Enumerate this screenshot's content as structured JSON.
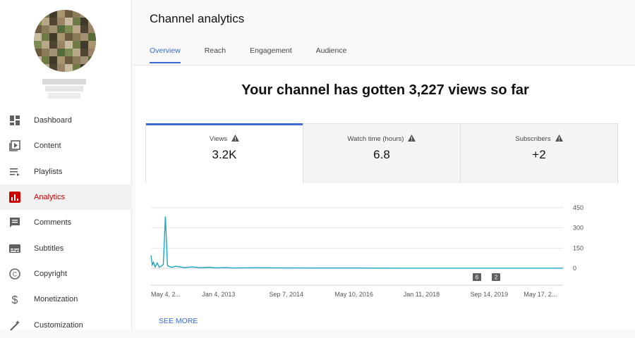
{
  "sidebar": {
    "items": [
      {
        "label": "Dashboard",
        "icon": "dashboard-icon",
        "active": false
      },
      {
        "label": "Content",
        "icon": "content-icon",
        "active": false
      },
      {
        "label": "Playlists",
        "icon": "playlists-icon",
        "active": false
      },
      {
        "label": "Analytics",
        "icon": "analytics-icon",
        "active": true
      },
      {
        "label": "Comments",
        "icon": "comments-icon",
        "active": false
      },
      {
        "label": "Subtitles",
        "icon": "subtitles-icon",
        "active": false
      },
      {
        "label": "Copyright",
        "icon": "copyright-icon",
        "active": false
      },
      {
        "label": "Monetization",
        "icon": "monetization-icon",
        "active": false
      },
      {
        "label": "Customization",
        "icon": "customization-icon",
        "active": false
      }
    ]
  },
  "header": {
    "title": "Channel analytics",
    "tabs": [
      {
        "label": "Overview",
        "active": true
      },
      {
        "label": "Reach",
        "active": false
      },
      {
        "label": "Engagement",
        "active": false
      },
      {
        "label": "Audience",
        "active": false
      }
    ]
  },
  "main": {
    "headline": "Your channel has gotten 3,227 views so far",
    "metrics": [
      {
        "label": "Views",
        "value": "3.2K",
        "active": true
      },
      {
        "label": "Watch time (hours)",
        "value": "6.8",
        "active": false
      },
      {
        "label": "Subscribers",
        "value": "+2",
        "active": false
      }
    ],
    "see_more": "SEE MORE"
  },
  "colors": {
    "accent": "#3b6ad6",
    "active_nav": "#cc0000",
    "line": "#1aa7c4"
  },
  "chart_data": {
    "type": "line",
    "x_tick_labels": [
      "May 4, 2...",
      "Jan 4, 2013",
      "Sep 7, 2014",
      "May 10, 2016",
      "Jan 11, 2018",
      "Sep 14, 2019",
      "May 17, 2..."
    ],
    "y_tick_labels": [
      "450",
      "300",
      "150",
      "0"
    ],
    "ylim": [
      0,
      450
    ],
    "series": [
      {
        "x": [
          0,
          0.3,
          0.6,
          1,
          1.5,
          2,
          2.5,
          3,
          3.5,
          4,
          4.5,
          5,
          6,
          8,
          10,
          12,
          14,
          16,
          18,
          20,
          25,
          30,
          40,
          50,
          60,
          70,
          80,
          90,
          100
        ],
        "values": [
          95,
          25,
          45,
          10,
          40,
          8,
          15,
          30,
          385,
          20,
          12,
          8,
          15,
          6,
          10,
          4,
          8,
          3,
          6,
          2,
          4,
          3,
          2,
          2,
          1,
          1,
          1,
          1,
          1
        ]
      }
    ],
    "markers": [
      "6",
      "2"
    ]
  }
}
